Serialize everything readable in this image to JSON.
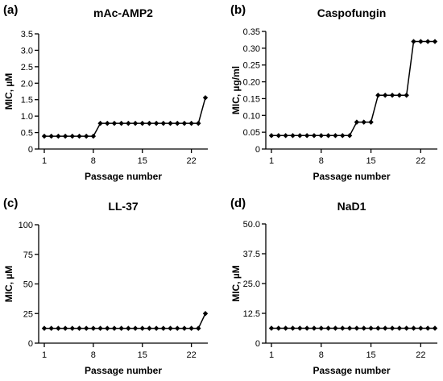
{
  "chart_data": [
    {
      "type": "line",
      "panel": "(a)",
      "title": "mAc-AMP2",
      "xlabel": "Passage number",
      "ylabel": "MIC, µM",
      "xlim": [
        1,
        24
      ],
      "xticks": [
        1,
        8,
        15,
        22
      ],
      "ylim": [
        0,
        3.5
      ],
      "yticks": [
        0,
        0.5,
        1.0,
        1.5,
        2.0,
        2.5,
        3.0,
        3.5
      ],
      "ytick_labels": [
        "0",
        "0.5",
        "1.0",
        "1.5",
        "2.0",
        "2.5",
        "3.0",
        "3.5"
      ],
      "x": [
        1,
        2,
        3,
        4,
        5,
        6,
        7,
        8,
        9,
        10,
        11,
        12,
        13,
        14,
        15,
        16,
        17,
        18,
        19,
        20,
        21,
        22,
        23,
        24
      ],
      "values": [
        0.39,
        0.39,
        0.39,
        0.39,
        0.39,
        0.39,
        0.39,
        0.39,
        0.78,
        0.78,
        0.78,
        0.78,
        0.78,
        0.78,
        0.78,
        0.78,
        0.78,
        0.78,
        0.78,
        0.78,
        0.78,
        0.78,
        0.78,
        1.56
      ],
      "marker": "diamond",
      "grid": false
    },
    {
      "type": "line",
      "panel": "(b)",
      "title": "Caspofungin",
      "xlabel": "Passage number",
      "ylabel": "MIC, µg/ml",
      "xlim": [
        1,
        24
      ],
      "xticks": [
        1,
        8,
        15,
        22
      ],
      "ylim": [
        0,
        0.35
      ],
      "yticks": [
        0,
        0.05,
        0.1,
        0.15,
        0.2,
        0.25,
        0.3,
        0.35
      ],
      "ytick_labels": [
        "0",
        "0.05",
        "0.10",
        "0.15",
        "0.20",
        "0.25",
        "0.30",
        "0.35"
      ],
      "x": [
        1,
        2,
        3,
        4,
        5,
        6,
        7,
        8,
        9,
        10,
        11,
        12,
        13,
        14,
        15,
        16,
        17,
        18,
        19,
        20,
        21,
        22,
        23,
        24
      ],
      "values": [
        0.04,
        0.04,
        0.04,
        0.04,
        0.04,
        0.04,
        0.04,
        0.04,
        0.04,
        0.04,
        0.04,
        0.04,
        0.08,
        0.08,
        0.08,
        0.16,
        0.16,
        0.16,
        0.16,
        0.16,
        0.32,
        0.32,
        0.32,
        0.32
      ],
      "marker": "diamond",
      "grid": false
    },
    {
      "type": "line",
      "panel": "(c)",
      "title": "LL-37",
      "xlabel": "Passage number",
      "ylabel": "MIC, µM",
      "xlim": [
        1,
        24
      ],
      "xticks": [
        1,
        8,
        15,
        22
      ],
      "ylim": [
        0,
        100
      ],
      "yticks": [
        0,
        25,
        50,
        75,
        100
      ],
      "ytick_labels": [
        "0",
        "25",
        "50",
        "75",
        "100"
      ],
      "x": [
        1,
        2,
        3,
        4,
        5,
        6,
        7,
        8,
        9,
        10,
        11,
        12,
        13,
        14,
        15,
        16,
        17,
        18,
        19,
        20,
        21,
        22,
        23,
        24
      ],
      "values": [
        12.5,
        12.5,
        12.5,
        12.5,
        12.5,
        12.5,
        12.5,
        12.5,
        12.5,
        12.5,
        12.5,
        12.5,
        12.5,
        12.5,
        12.5,
        12.5,
        12.5,
        12.5,
        12.5,
        12.5,
        12.5,
        12.5,
        12.5,
        25
      ],
      "marker": "diamond",
      "grid": false
    },
    {
      "type": "line",
      "panel": "(d)",
      "title": "NaD1",
      "xlabel": "Passage number",
      "ylabel": "MIC, µM",
      "xlim": [
        1,
        24
      ],
      "xticks": [
        1,
        8,
        15,
        22
      ],
      "ylim": [
        0,
        50
      ],
      "yticks": [
        0,
        12.5,
        25.0,
        37.5,
        50.0
      ],
      "ytick_labels": [
        "0",
        "12.5",
        "25.0",
        "37.5",
        "50.0"
      ],
      "x": [
        1,
        2,
        3,
        4,
        5,
        6,
        7,
        8,
        9,
        10,
        11,
        12,
        13,
        14,
        15,
        16,
        17,
        18,
        19,
        20,
        21,
        22,
        23,
        24
      ],
      "values": [
        6.25,
        6.25,
        6.25,
        6.25,
        6.25,
        6.25,
        6.25,
        6.25,
        6.25,
        6.25,
        6.25,
        6.25,
        6.25,
        6.25,
        6.25,
        6.25,
        6.25,
        6.25,
        6.25,
        6.25,
        6.25,
        6.25,
        6.25,
        6.25
      ],
      "marker": "diamond",
      "grid": false
    }
  ]
}
